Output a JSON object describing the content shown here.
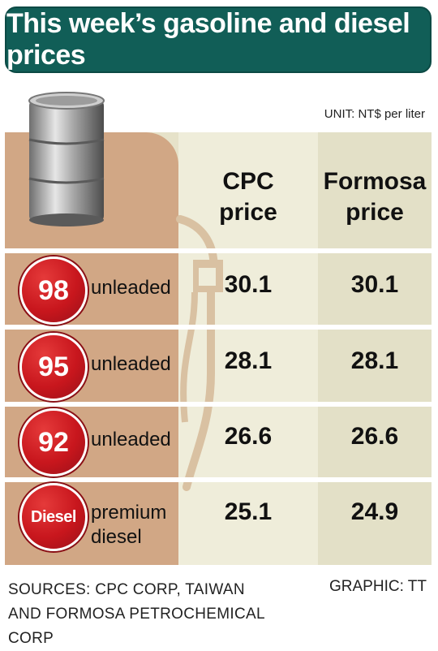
{
  "title": "This week’s gasoline and diesel prices",
  "unit": "UNIT: NT$ per liter",
  "headers": {
    "cpc": "CPC\nprice",
    "formosa": "Formosa\nprice"
  },
  "chart_data": {
    "type": "table",
    "title": "This week’s gasoline and diesel prices",
    "unit": "UNIT: NT$ per liter",
    "columns": [
      "CPC price",
      "Formosa price"
    ],
    "rows": [
      {
        "badge": "98",
        "label": "unleaded",
        "cpc": "30.1",
        "formosa": "30.1"
      },
      {
        "badge": "95",
        "label": "unleaded",
        "cpc": "28.1",
        "formosa": "28.1"
      },
      {
        "badge": "92",
        "label": "unleaded",
        "cpc": "26.6",
        "formosa": "26.6"
      },
      {
        "badge": "Diesel",
        "label": "premium diesel",
        "cpc": "25.1",
        "formosa": "24.9"
      }
    ]
  },
  "footer": {
    "sources": "SOURCES: CPC CORP, TAIWAN AND FORMOSA PETROCHEMICAL CORP",
    "graphic": "GRAPHIC: TT"
  },
  "colors": {
    "title_bg": "#115e57",
    "badge_red": "#c8161d",
    "left_col": "#d1a785",
    "mid_col": "#efedda",
    "right_col": "#e3e0c7"
  }
}
